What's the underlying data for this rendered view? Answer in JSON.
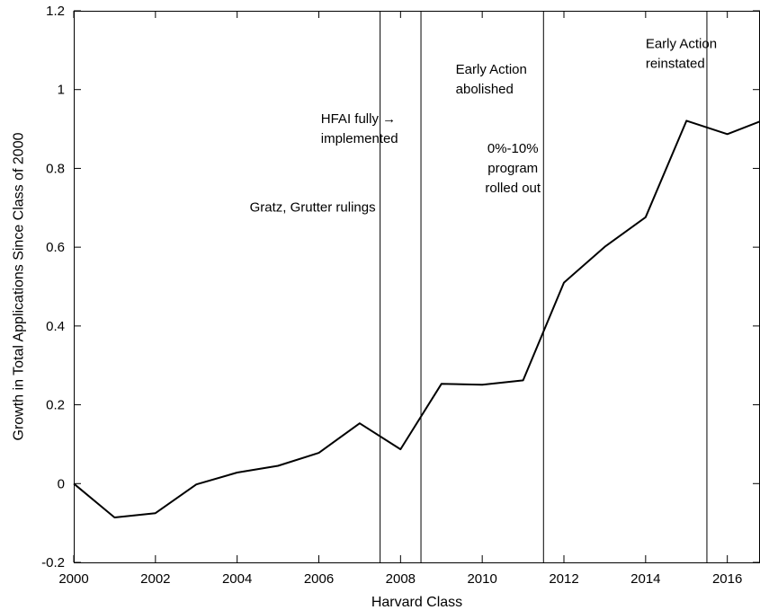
{
  "chart_data": {
    "type": "line",
    "xlabel": "Harvard Class",
    "ylabel": "Growth in Total Applications Since Class of 2000",
    "xlim": [
      2000,
      2016.8
    ],
    "ylim": [
      -0.2,
      1.2
    ],
    "xticks": [
      2000,
      2002,
      2004,
      2006,
      2008,
      2010,
      2012,
      2014,
      2016
    ],
    "xtick_labels": [
      "2000",
      "2002",
      "2004",
      "2006",
      "2008",
      "2010",
      "2012",
      "2014",
      "2016"
    ],
    "yticks": [
      -0.2,
      0,
      0.2,
      0.4,
      0.6,
      0.8,
      1,
      1.2
    ],
    "ytick_labels": [
      "-0.2",
      "0",
      "0.2",
      "0.4",
      "0.6",
      "0.8",
      "1",
      "1.2"
    ],
    "grid": false,
    "series": [
      {
        "x": [
          2000,
          2001,
          2002,
          2003,
          2004,
          2005,
          2006,
          2007,
          2008,
          2009,
          2010,
          2011,
          2012,
          2013,
          2014,
          2015,
          2016,
          2016.8
        ],
        "values": [
          0.0,
          -0.086,
          -0.075,
          -0.002,
          0.028,
          0.045,
          0.078,
          0.153,
          0.087,
          0.253,
          0.251,
          0.262,
          0.51,
          0.601,
          0.676,
          0.921,
          0.887,
          0.919
        ]
      }
    ],
    "vlines": [
      2007.5,
      2008.5,
      2011.5,
      2015.5
    ],
    "annotations": [
      {
        "lines": [
          "Gratz, Grutter rulings"
        ],
        "x": 2007.5,
        "y": 0.69,
        "anchor": "end"
      },
      {
        "lines": [
          "HFAI fully  →",
          "implemented"
        ],
        "x": 2006.05,
        "y": 0.915,
        "anchor": "start"
      },
      {
        "lines": [
          "Early Action",
          "abolished"
        ],
        "x": 2009.35,
        "y": 1.04,
        "anchor": "start"
      },
      {
        "lines": [
          "0%-10%",
          "program",
          "rolled out"
        ],
        "x": 2010.75,
        "y": 0.84,
        "anchor": "middle"
      },
      {
        "lines": [
          "Early Action",
          "reinstated"
        ],
        "x": 2014.0,
        "y": 1.105,
        "anchor": "start"
      }
    ]
  }
}
